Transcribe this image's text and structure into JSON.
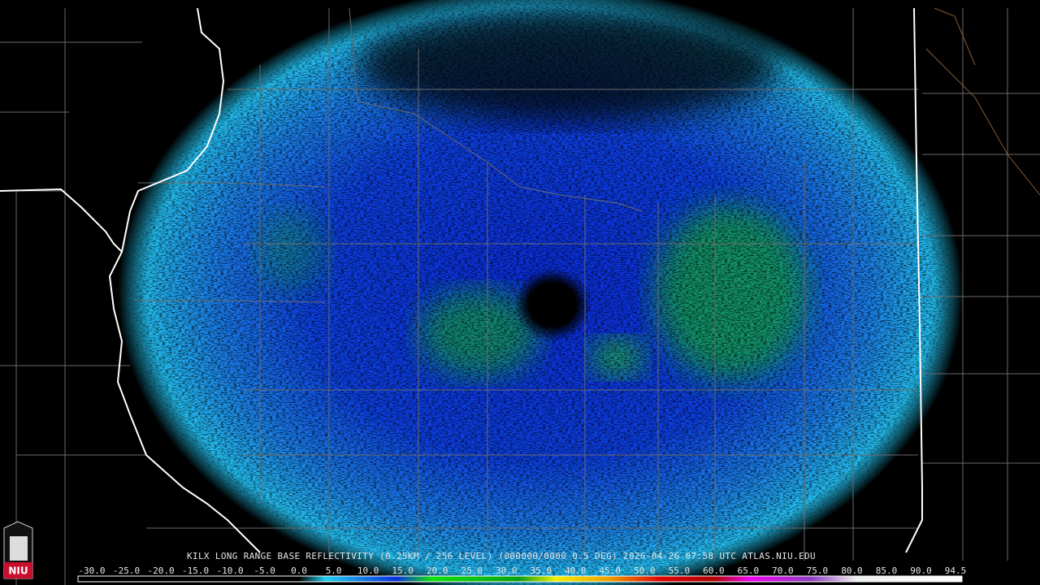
{
  "logo": "NIU",
  "header": "KILX LONG RANGE BASE REFLECTIVITY (0.25KM / 256 LEVEL) (000000/0000 0.5 DEG) 2026-04-26 07:58 UTC  ATLAS.NIU.EDU",
  "scale": {
    "labels": [
      "-30.0",
      "-25.0",
      "-20.0",
      "-15.0",
      "-10.0",
      "-5.0",
      "0.0",
      "5.0",
      "10.0",
      "15.0",
      "20.0",
      "25.0",
      "30.0",
      "35.0",
      "40.0",
      "45.0",
      "50.0",
      "55.0",
      "60.0",
      "65.0",
      "70.0",
      "75.0",
      "80.0",
      "85.0",
      "90.0",
      "94.5"
    ]
  }
}
